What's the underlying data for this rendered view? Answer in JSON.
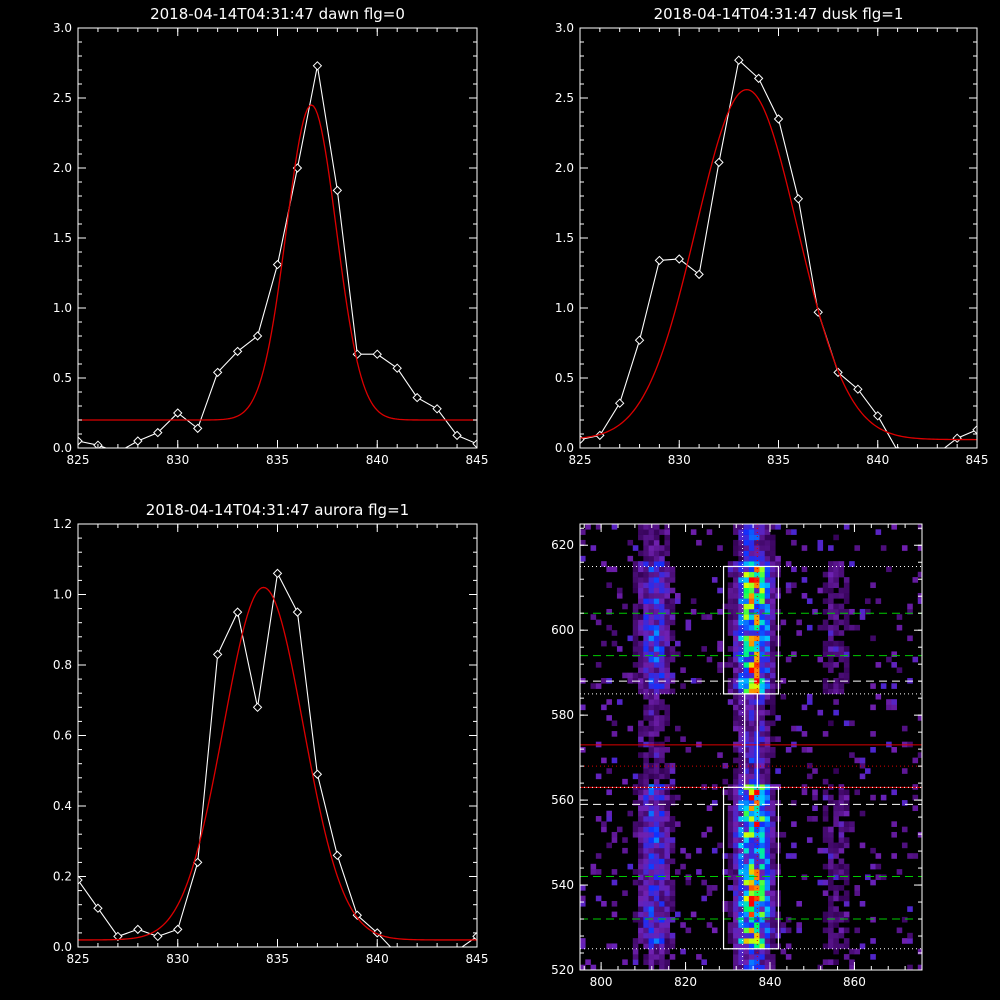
{
  "chart_data": [
    {
      "type": "line",
      "title": "2018-04-14T04:31:47 dawn flg=0",
      "xlabel": "",
      "ylabel": "",
      "xlim": [
        825,
        845
      ],
      "ylim": [
        0,
        3.0
      ],
      "xticks": [
        825,
        830,
        835,
        840,
        845
      ],
      "yticks": [
        0.0,
        0.5,
        1.0,
        1.5,
        2.0,
        2.5,
        3.0
      ],
      "ytick_labels": [
        "0.0",
        "0.5",
        "1.0",
        "1.5",
        "2.0",
        "2.5",
        "3.0"
      ],
      "series": [
        {
          "color": "#ffffff",
          "marker": "diamond",
          "x": [
            825,
            826,
            827,
            828,
            829,
            830,
            831,
            832,
            833,
            834,
            835,
            836,
            837,
            838,
            839,
            840,
            841,
            842,
            843,
            844,
            845
          ],
          "y": [
            0.05,
            0.02,
            -0.03,
            0.05,
            0.11,
            0.25,
            0.14,
            0.54,
            0.69,
            0.8,
            1.31,
            2.0,
            2.73,
            1.84,
            0.67,
            0.67,
            0.57,
            0.36,
            0.28,
            0.09,
            0.03
          ]
        },
        {
          "color": "#dd0000",
          "fit": "gaussian",
          "params": {
            "center": 836.7,
            "sigma": 1.25,
            "amplitude": 2.25,
            "baseline": 0.2
          }
        }
      ]
    },
    {
      "type": "line",
      "title": "2018-04-14T04:31:47 dusk flg=1",
      "xlabel": "",
      "ylabel": "",
      "xlim": [
        825,
        845
      ],
      "ylim": [
        0,
        3.0
      ],
      "xticks": [
        825,
        830,
        835,
        840,
        845
      ],
      "yticks": [
        0.0,
        0.5,
        1.0,
        1.5,
        2.0,
        2.5,
        3.0
      ],
      "ytick_labels": [
        "0.0",
        "0.5",
        "1.0",
        "1.5",
        "2.0",
        "2.5",
        "3.0"
      ],
      "series": [
        {
          "color": "#ffffff",
          "marker": "diamond",
          "x": [
            825,
            826,
            827,
            828,
            829,
            830,
            831,
            832,
            833,
            834,
            835,
            836,
            837,
            838,
            839,
            840,
            841,
            842,
            843,
            844,
            845
          ],
          "y": [
            0.06,
            0.09,
            0.32,
            0.77,
            1.34,
            1.35,
            1.24,
            2.04,
            2.77,
            2.64,
            2.35,
            1.78,
            0.97,
            0.54,
            0.42,
            0.23,
            -0.02,
            -0.04,
            -0.04,
            0.07,
            0.13
          ]
        },
        {
          "color": "#dd0000",
          "fit": "gaussian",
          "params": {
            "center": 833.4,
            "sigma": 2.55,
            "amplitude": 2.5,
            "baseline": 0.06
          }
        }
      ]
    },
    {
      "type": "line",
      "title": "2018-04-14T04:31:47 aurora flg=1",
      "xlabel": "",
      "ylabel": "",
      "xlim": [
        825,
        845
      ],
      "ylim": [
        0,
        1.2
      ],
      "xticks": [
        825,
        830,
        835,
        840,
        845
      ],
      "yticks": [
        0.0,
        0.2,
        0.4,
        0.6,
        0.8,
        1.0,
        1.2
      ],
      "ytick_labels": [
        "0.0",
        "0.2",
        "0.4",
        "0.6",
        "0.8",
        "1.0",
        "1.2"
      ],
      "series": [
        {
          "color": "#ffffff",
          "marker": "diamond",
          "x": [
            825,
            826,
            827,
            828,
            829,
            830,
            831,
            832,
            833,
            834,
            835,
            836,
            837,
            838,
            839,
            840,
            841,
            842,
            843,
            844,
            845
          ],
          "y": [
            0.19,
            0.11,
            0.03,
            0.05,
            0.03,
            0.05,
            0.24,
            0.83,
            0.95,
            0.68,
            1.06,
            0.95,
            0.49,
            0.26,
            0.09,
            0.04,
            -0.02,
            -0.04,
            -0.03,
            -0.01,
            0.03
          ]
        },
        {
          "color": "#dd0000",
          "fit": "gaussian",
          "params": {
            "center": 834.3,
            "sigma": 2.0,
            "amplitude": 1.0,
            "baseline": 0.02
          }
        }
      ]
    },
    {
      "type": "heatmap",
      "title": "",
      "xlabel": "",
      "ylabel": "",
      "xlim": [
        795,
        876
      ],
      "ylim": [
        520,
        625
      ],
      "xticks": [
        800,
        820,
        840,
        860
      ],
      "yticks": [
        520,
        540,
        560,
        580,
        600,
        620
      ],
      "colormap": "rainbow",
      "bands": [
        {
          "x_center": 812,
          "x_halfwidth": 4.5,
          "intensity": 0.42
        },
        {
          "x_center": 835.5,
          "x_halfwidth": 4.5,
          "intensity": 0.85
        },
        {
          "x_center": 855,
          "x_halfwidth": 4,
          "intensity": 0.18
        }
      ],
      "boxes": [
        {
          "x0": 829,
          "x1": 842,
          "y0": 585,
          "y1": 615,
          "color": "#ffffff"
        },
        {
          "x0": 829,
          "x1": 842,
          "y0": 525,
          "y1": 563,
          "color": "#ffffff"
        },
        {
          "x0": 834,
          "x1": 837,
          "y0": 563,
          "y1": 585,
          "color": "#ffffff"
        }
      ],
      "hlines": [
        {
          "y": 615,
          "color": "#ffffff",
          "style": "dotted"
        },
        {
          "y": 604,
          "color": "#00cc00",
          "style": "dashed"
        },
        {
          "y": 594,
          "color": "#00cc00",
          "style": "dashed"
        },
        {
          "y": 588,
          "color": "#ffffff",
          "style": "dashed"
        },
        {
          "y": 585,
          "color": "#ffffff",
          "style": "dotted"
        },
        {
          "y": 573,
          "color": "#dd0000",
          "style": "solid"
        },
        {
          "y": 568,
          "color": "#dd0000",
          "style": "dotted"
        },
        {
          "y": 563,
          "color": "#dd0000",
          "style": "solid"
        },
        {
          "y": 563,
          "color": "#ffffff",
          "style": "dotted"
        },
        {
          "y": 559,
          "color": "#ffffff",
          "style": "dashed"
        },
        {
          "y": 542,
          "color": "#00cc00",
          "style": "dashed"
        },
        {
          "y": 532,
          "color": "#00cc00",
          "style": "dashed"
        },
        {
          "y": 525,
          "color": "#ffffff",
          "style": "dotted"
        }
      ],
      "vlines": [
        {
          "x": 833.5,
          "color": "#ffffff",
          "style": "dotted"
        },
        {
          "x": 837,
          "color": "#dd0000",
          "style": "dotted"
        }
      ]
    }
  ]
}
